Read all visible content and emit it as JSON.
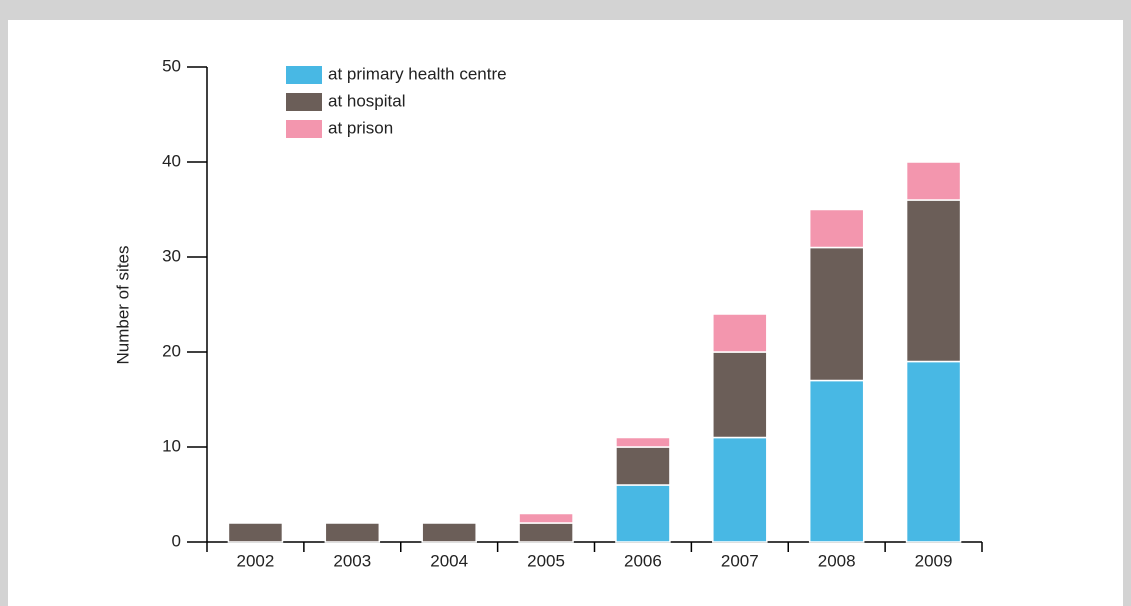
{
  "chart_data": {
    "type": "stacked_bar",
    "categories": [
      "2002",
      "2003",
      "2004",
      "2005",
      "2006",
      "2007",
      "2008",
      "2009"
    ],
    "series": [
      {
        "name": "at primary health centre",
        "color": "#48b8e4",
        "values": [
          0,
          0,
          0,
          0,
          6,
          11,
          17,
          19
        ]
      },
      {
        "name": "at hospital",
        "color": "#6b5e58",
        "values": [
          2,
          2,
          2,
          2,
          4,
          9,
          14,
          17
        ]
      },
      {
        "name": "at prison",
        "color": "#f396ae",
        "values": [
          0,
          0,
          0,
          1,
          1,
          4,
          4,
          4
        ]
      }
    ],
    "y_label": "Number of sites",
    "ylim": [
      0,
      50
    ],
    "yticks": [
      0,
      10,
      20,
      30,
      40,
      50
    ],
    "legend": "top-left",
    "grid": false
  }
}
